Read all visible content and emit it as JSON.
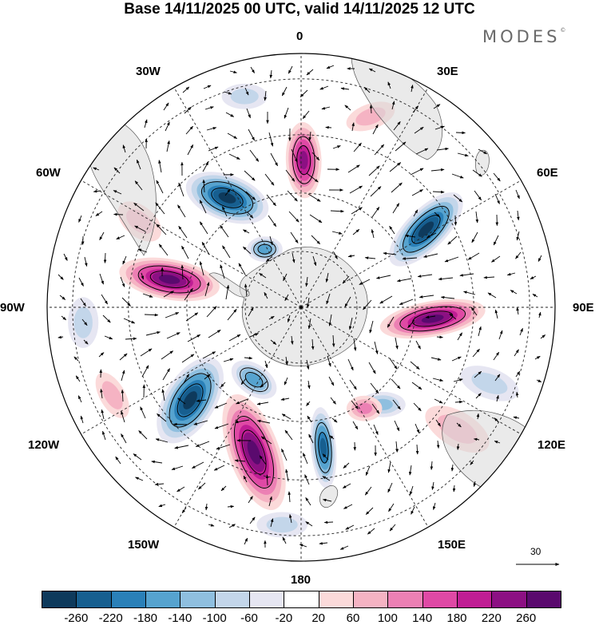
{
  "title": "Base 14/11/2025 00 UTC, valid 14/11/2025 12 UTC",
  "brand": {
    "text": "MODES",
    "mark": "©"
  },
  "longitude_labels": [
    {
      "key": "n",
      "text": "0"
    },
    {
      "key": "s",
      "text": "180"
    },
    {
      "key": "e",
      "text": "90E"
    },
    {
      "key": "w",
      "text": "90W"
    },
    {
      "key": "e30",
      "text": "30E"
    },
    {
      "key": "e60",
      "text": "60E"
    },
    {
      "key": "e120",
      "text": "120E"
    },
    {
      "key": "e150",
      "text": "150E"
    },
    {
      "key": "w30",
      "text": "30W"
    },
    {
      "key": "w60",
      "text": "60W"
    },
    {
      "key": "w120",
      "text": "120W"
    },
    {
      "key": "w150",
      "text": "150W"
    }
  ],
  "reference_vector": {
    "label": "30"
  },
  "colorbar": {
    "ticks": [
      "-260",
      "-220",
      "-180",
      "-140",
      "-100",
      "-60",
      "-20",
      "20",
      "60",
      "100",
      "140",
      "180",
      "220",
      "260"
    ],
    "colors": [
      "#0e3a5c",
      "#175f90",
      "#2a80b8",
      "#56a3cf",
      "#8fbfdf",
      "#c3d6ea",
      "#e6e6f2",
      "#ffffff",
      "#fbdada",
      "#f5b3c3",
      "#ec80b4",
      "#df49a5",
      "#c01e94",
      "#8c1083",
      "#5a0a6e"
    ]
  },
  "anomaly_features": [
    {
      "sign": "negative",
      "value": -260,
      "bearing_deg": 326,
      "radius_frac": 0.52,
      "major": 0.17,
      "minor": 0.09,
      "tilt": 20
    },
    {
      "sign": "negative",
      "value": -260,
      "bearing_deg": 58,
      "radius_frac": 0.58,
      "major": 0.19,
      "minor": 0.08,
      "tilt": -45
    },
    {
      "sign": "negative",
      "value": -260,
      "bearing_deg": 230,
      "radius_frac": 0.57,
      "major": 0.19,
      "minor": 0.1,
      "tilt": -58
    },
    {
      "sign": "negative",
      "value": -220,
      "bearing_deg": 171,
      "radius_frac": 0.56,
      "major": 0.16,
      "minor": 0.05,
      "tilt": 85
    },
    {
      "sign": "negative",
      "value": -140,
      "bearing_deg": 213,
      "radius_frac": 0.34,
      "major": 0.1,
      "minor": 0.06,
      "tilt": 35
    },
    {
      "sign": "negative",
      "value": -140,
      "bearing_deg": 328,
      "radius_frac": 0.27,
      "major": 0.07,
      "minor": 0.05,
      "tilt": 0
    },
    {
      "sign": "negative",
      "value": -100,
      "bearing_deg": 140,
      "radius_frac": 0.5,
      "major": 0.09,
      "minor": 0.05,
      "tilt": 0
    },
    {
      "sign": "positive",
      "value": 260,
      "bearing_deg": 282,
      "radius_frac": 0.53,
      "major": 0.2,
      "minor": 0.08,
      "tilt": 10
    },
    {
      "sign": "positive",
      "value": 260,
      "bearing_deg": 95,
      "radius_frac": 0.52,
      "major": 0.21,
      "minor": 0.07,
      "tilt": -10
    },
    {
      "sign": "positive",
      "value": 260,
      "bearing_deg": 198,
      "radius_frac": 0.6,
      "major": 0.24,
      "minor": 0.1,
      "tilt": 70
    },
    {
      "sign": "positive",
      "value": 220,
      "bearing_deg": 1,
      "radius_frac": 0.58,
      "major": 0.15,
      "minor": 0.07,
      "tilt": 88
    },
    {
      "sign": "positive",
      "value": 100,
      "bearing_deg": 148,
      "radius_frac": 0.47,
      "major": 0.07,
      "minor": 0.05,
      "tilt": 0
    },
    {
      "sign": "positive",
      "value": 60,
      "bearing_deg": 128,
      "radius_frac": 0.78,
      "major": 0.14,
      "minor": 0.07,
      "tilt": 30
    },
    {
      "sign": "positive",
      "value": 60,
      "bearing_deg": 298,
      "radius_frac": 0.72,
      "major": 0.1,
      "minor": 0.06,
      "tilt": 40
    },
    {
      "sign": "positive",
      "value": 60,
      "bearing_deg": 20,
      "radius_frac": 0.8,
      "major": 0.1,
      "minor": 0.05,
      "tilt": -20
    },
    {
      "sign": "positive",
      "value": 60,
      "bearing_deg": 245,
      "radius_frac": 0.82,
      "major": 0.1,
      "minor": 0.05,
      "tilt": 60
    },
    {
      "sign": "negative",
      "value": -60,
      "bearing_deg": 112,
      "radius_frac": 0.8,
      "major": 0.12,
      "minor": 0.06,
      "tilt": 20
    },
    {
      "sign": "negative",
      "value": -60,
      "bearing_deg": 266,
      "radius_frac": 0.86,
      "major": 0.1,
      "minor": 0.06,
      "tilt": 90
    },
    {
      "sign": "negative",
      "value": -60,
      "bearing_deg": 345,
      "radius_frac": 0.86,
      "major": 0.09,
      "minor": 0.05,
      "tilt": 0
    },
    {
      "sign": "negative",
      "value": -60,
      "bearing_deg": 185,
      "radius_frac": 0.86,
      "major": 0.1,
      "minor": 0.05,
      "tilt": 0
    }
  ]
}
